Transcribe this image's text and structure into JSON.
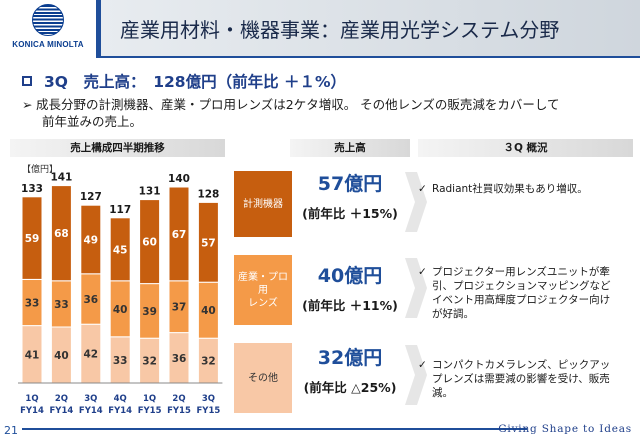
{
  "header": {
    "logo_text": "KONICA MINOLTA",
    "title": "産業用材料・機器事業：産業用光学システム分野"
  },
  "headline": "3Q　売上高：　128億円（前年比 ＋１%）",
  "bullet": {
    "line1": "成長分野の計測機器、産業・プロ用レンズは2ケタ増収。 その他レンズの販売減をカバーして",
    "line2": "前年並みの売上。"
  },
  "columns": {
    "chart": "売上構成四半期推移",
    "sales": "売上高",
    "overview": "３Q 概況"
  },
  "chart_data": {
    "type": "bar",
    "stacked": true,
    "unit_label": "【億円】",
    "categories": [
      {
        "q": "1Q",
        "fy": "FY14"
      },
      {
        "q": "2Q",
        "fy": "FY14"
      },
      {
        "q": "3Q",
        "fy": "FY14"
      },
      {
        "q": "4Q",
        "fy": "FY14"
      },
      {
        "q": "1Q",
        "fy": "FY15"
      },
      {
        "q": "2Q",
        "fy": "FY15"
      },
      {
        "q": "3Q",
        "fy": "FY15"
      }
    ],
    "totals": [
      133,
      141,
      127,
      117,
      131,
      140,
      128
    ],
    "series": [
      {
        "values": [
          41,
          40,
          42,
          33,
          32,
          36,
          32
        ],
        "color": "#f8c8a6",
        "label_color": "#333333"
      },
      {
        "values": [
          33,
          33,
          36,
          40,
          39,
          37,
          40
        ],
        "color": "#f49a48",
        "label_color": "#333333"
      },
      {
        "values": [
          59,
          68,
          49,
          45,
          60,
          67,
          57
        ],
        "color": "#c65e0f",
        "label_color": "#ffffff"
      }
    ],
    "ylim": [
      0,
      145
    ]
  },
  "segments": [
    {
      "label": "計測機器",
      "sales": "57億円",
      "yoy": "(前年比 ＋15%)",
      "overview": "Radiant社買収効果もあり増収。"
    },
    {
      "label": "産業・プロ用\nレンズ",
      "sales": "40億円",
      "yoy": "(前年比 ＋11%)",
      "overview": "プロジェクター用レンズユニットが牽引、プロジェクションマッピングなどイベント用高輝度プロジェクター向けが好調。"
    },
    {
      "label": "その他",
      "sales": "32億円",
      "yoy": "(前年比 △25%)",
      "overview": "コンパクトカメラレンズ、ピックアップレンズは需要減の影響を受け、販売減。"
    }
  ],
  "footer": {
    "page_number": "21",
    "tagline": "Giving Shape to Ideas"
  }
}
